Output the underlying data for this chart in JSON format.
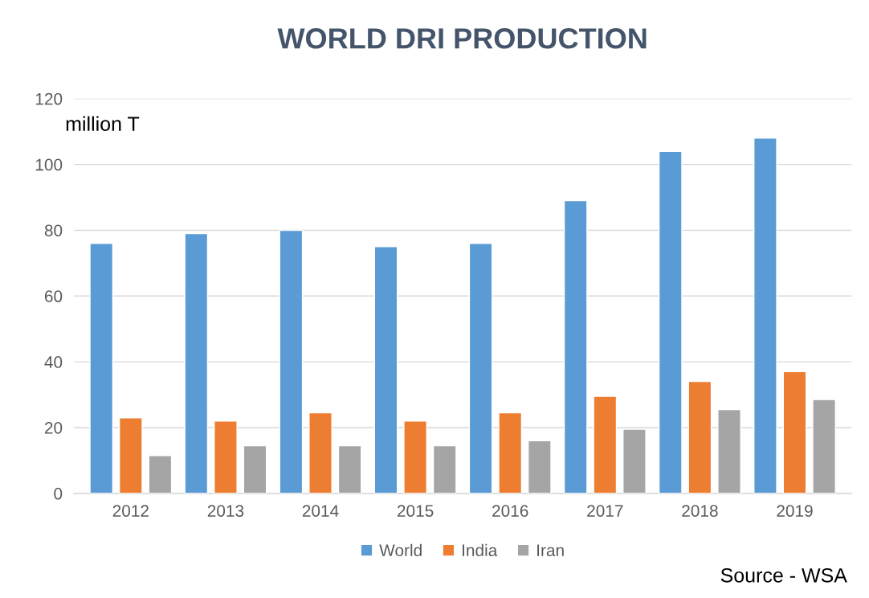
{
  "chart_data": {
    "type": "bar",
    "title": "WORLD DRI PRODUCTION",
    "categories": [
      "2012",
      "2013",
      "2014",
      "2015",
      "2016",
      "2017",
      "2018",
      "2019"
    ],
    "series": [
      {
        "name": "World",
        "color": "#5b9bd5",
        "values": [
          76,
          79,
          80,
          75,
          76,
          89,
          104,
          108
        ]
      },
      {
        "name": "India",
        "color": "#ed7d31",
        "values": [
          23,
          22,
          24.5,
          22,
          24.5,
          29.5,
          34,
          37
        ]
      },
      {
        "name": "Iran",
        "color": "#a5a5a5",
        "values": [
          11.5,
          14.5,
          14.5,
          14.5,
          16,
          19.5,
          25.5,
          28.5
        ]
      }
    ],
    "ylim": [
      0,
      120
    ],
    "yticks": [
      0,
      20,
      40,
      60,
      80,
      100,
      120
    ],
    "grid": "y",
    "legend": "bottom",
    "annotations": [
      "million T",
      "Source - WSA"
    ]
  }
}
